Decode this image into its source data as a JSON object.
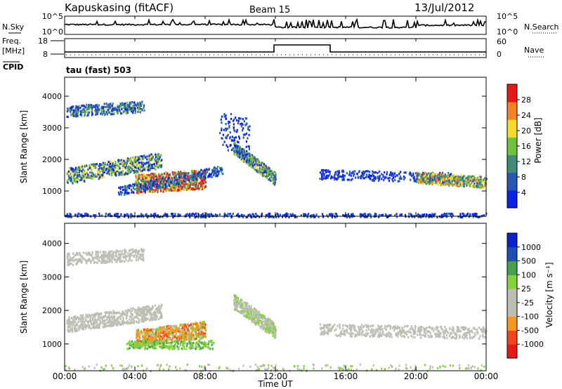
{
  "header": {
    "station": "Kapuskasing (fitACF)",
    "beam": "Beam 15",
    "date": "13/Jul/2012"
  },
  "panels": {
    "nsky": {
      "label": "N.Sky",
      "right_label": "N.Search",
      "ticks_left": [
        "10^5",
        "10^0"
      ],
      "ticks_right": [
        "10^5",
        "10^0"
      ]
    },
    "freq": {
      "label_line1": "Freq.",
      "label_line2": "[MHz]",
      "cpid_label": "CPID",
      "right_label": "Nave",
      "ticks_left": [
        "18",
        "8"
      ],
      "ticks_right": [
        "60",
        "0"
      ],
      "cpid_text": "tau (fast) 503"
    }
  },
  "chart_data": [
    {
      "type": "heatmap",
      "name": "power",
      "ylabel": "Slant Range [km]",
      "y_ticks": [
        "1000",
        "2000",
        "3000",
        "4000"
      ],
      "ylim": [
        200,
        4600
      ],
      "colorbar_label": "Power [dB]",
      "colorbar_ticks": [
        "4",
        "8",
        "12",
        "16",
        "20",
        "24",
        "28"
      ],
      "colors": [
        "#0a23e6",
        "#2b55b4",
        "#3f8c78",
        "#70c23c",
        "#f5dc28",
        "#f5821e",
        "#e61919"
      ]
    },
    {
      "type": "heatmap",
      "name": "velocity",
      "ylabel": "Slant Range [km]",
      "y_ticks": [
        "1000",
        "2000",
        "3000",
        "4000"
      ],
      "ylim": [
        200,
        4600
      ],
      "colorbar_label": "Velocity [m s⁻¹]",
      "colorbar_ticks": [
        "-1000",
        "-500",
        "-100",
        "-25",
        "25",
        "100",
        "500",
        "1000"
      ],
      "colors": [
        "#e61919",
        "#f0461e",
        "#f5961e",
        "#bebeb4",
        "#bebeb4",
        "#82d23c",
        "#46a050",
        "#1e50b4",
        "#0a23c8"
      ]
    }
  ],
  "time_axis": {
    "xlabel": "Time UT",
    "ticks": [
      "00:00",
      "04:00",
      "08:00",
      "12:00",
      "16:00",
      "20:00",
      "00:00"
    ]
  }
}
